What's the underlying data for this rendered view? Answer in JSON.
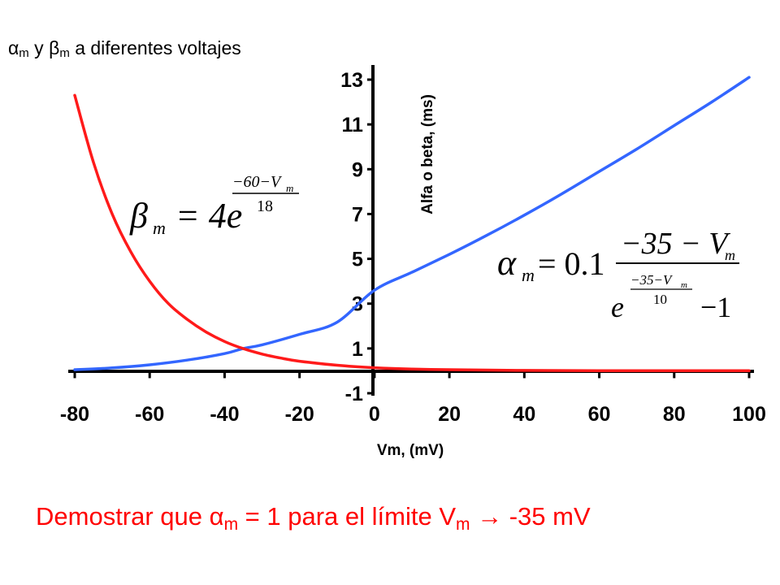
{
  "colors": {
    "alpha": "#3366ff",
    "beta": "#ff1a1a",
    "note": "#ff0000",
    "axis": "#000000"
  },
  "title": {
    "alpha_symbol": "α",
    "m1": "m",
    "y": " y ",
    "beta_symbol": "β",
    "m2": "m",
    "rest": " a diferentes voltajes"
  },
  "note": {
    "prefix": "Demostrar que ",
    "alpha_symbol": "α",
    "m1": "m",
    "middle": " = 1 para el límite V",
    "m2": "m",
    "arrow": " → ",
    "suffix": "-35 mV"
  },
  "formulas": {
    "beta": {
      "lhs": "β",
      "sub": "m",
      "eq": "= 4e",
      "num": "−60−V",
      "num_sub": "m",
      "den": "18"
    },
    "alpha": {
      "lhs": "α",
      "sub": "m",
      "eq": "= 0.1",
      "num": "−35 − V",
      "num_sub": "m",
      "den_e": "e",
      "exp_num": "−35−V",
      "exp_sub": "m",
      "exp_den": "10",
      "minus_one": "−1"
    }
  },
  "chart_data": {
    "type": "line",
    "title": "",
    "xlabel": "Vm, (mV)",
    "ylabel": "Alfa o beta, (ms)",
    "xlim": [
      -80,
      100
    ],
    "ylim": [
      -1,
      13
    ],
    "xticks": [
      -80,
      -60,
      -40,
      -20,
      0,
      20,
      40,
      60,
      80,
      100
    ],
    "yticks": [
      13,
      11,
      9,
      7,
      5,
      3,
      1,
      -1
    ],
    "grid": false,
    "series": [
      {
        "key": "alpha",
        "x": [
          -80,
          -70,
          -60,
          -50,
          -40,
          -35,
          -30,
          -20,
          -10,
          0,
          10,
          20,
          30,
          40,
          50,
          60,
          70,
          80,
          90,
          100
        ],
        "values": [
          0.05,
          0.13,
          0.27,
          0.48,
          0.77,
          1.0,
          1.16,
          1.63,
          2.17,
          3.6,
          4.4,
          5.2,
          6.05,
          6.95,
          7.9,
          8.9,
          9.9,
          10.95,
          12.0,
          13.1
        ]
      },
      {
        "key": "beta",
        "x": [
          -80,
          -75,
          -70,
          -65,
          -60,
          -55,
          -50,
          -45,
          -40,
          -35,
          -30,
          -25,
          -20,
          -10,
          0,
          10,
          20,
          40,
          60,
          100
        ],
        "values": [
          12.3,
          9.3,
          7.0,
          5.3,
          4.0,
          3.0,
          2.3,
          1.74,
          1.31,
          0.99,
          0.75,
          0.57,
          0.43,
          0.25,
          0.14,
          0.08,
          0.05,
          0.02,
          0.01,
          0.003
        ]
      }
    ]
  }
}
